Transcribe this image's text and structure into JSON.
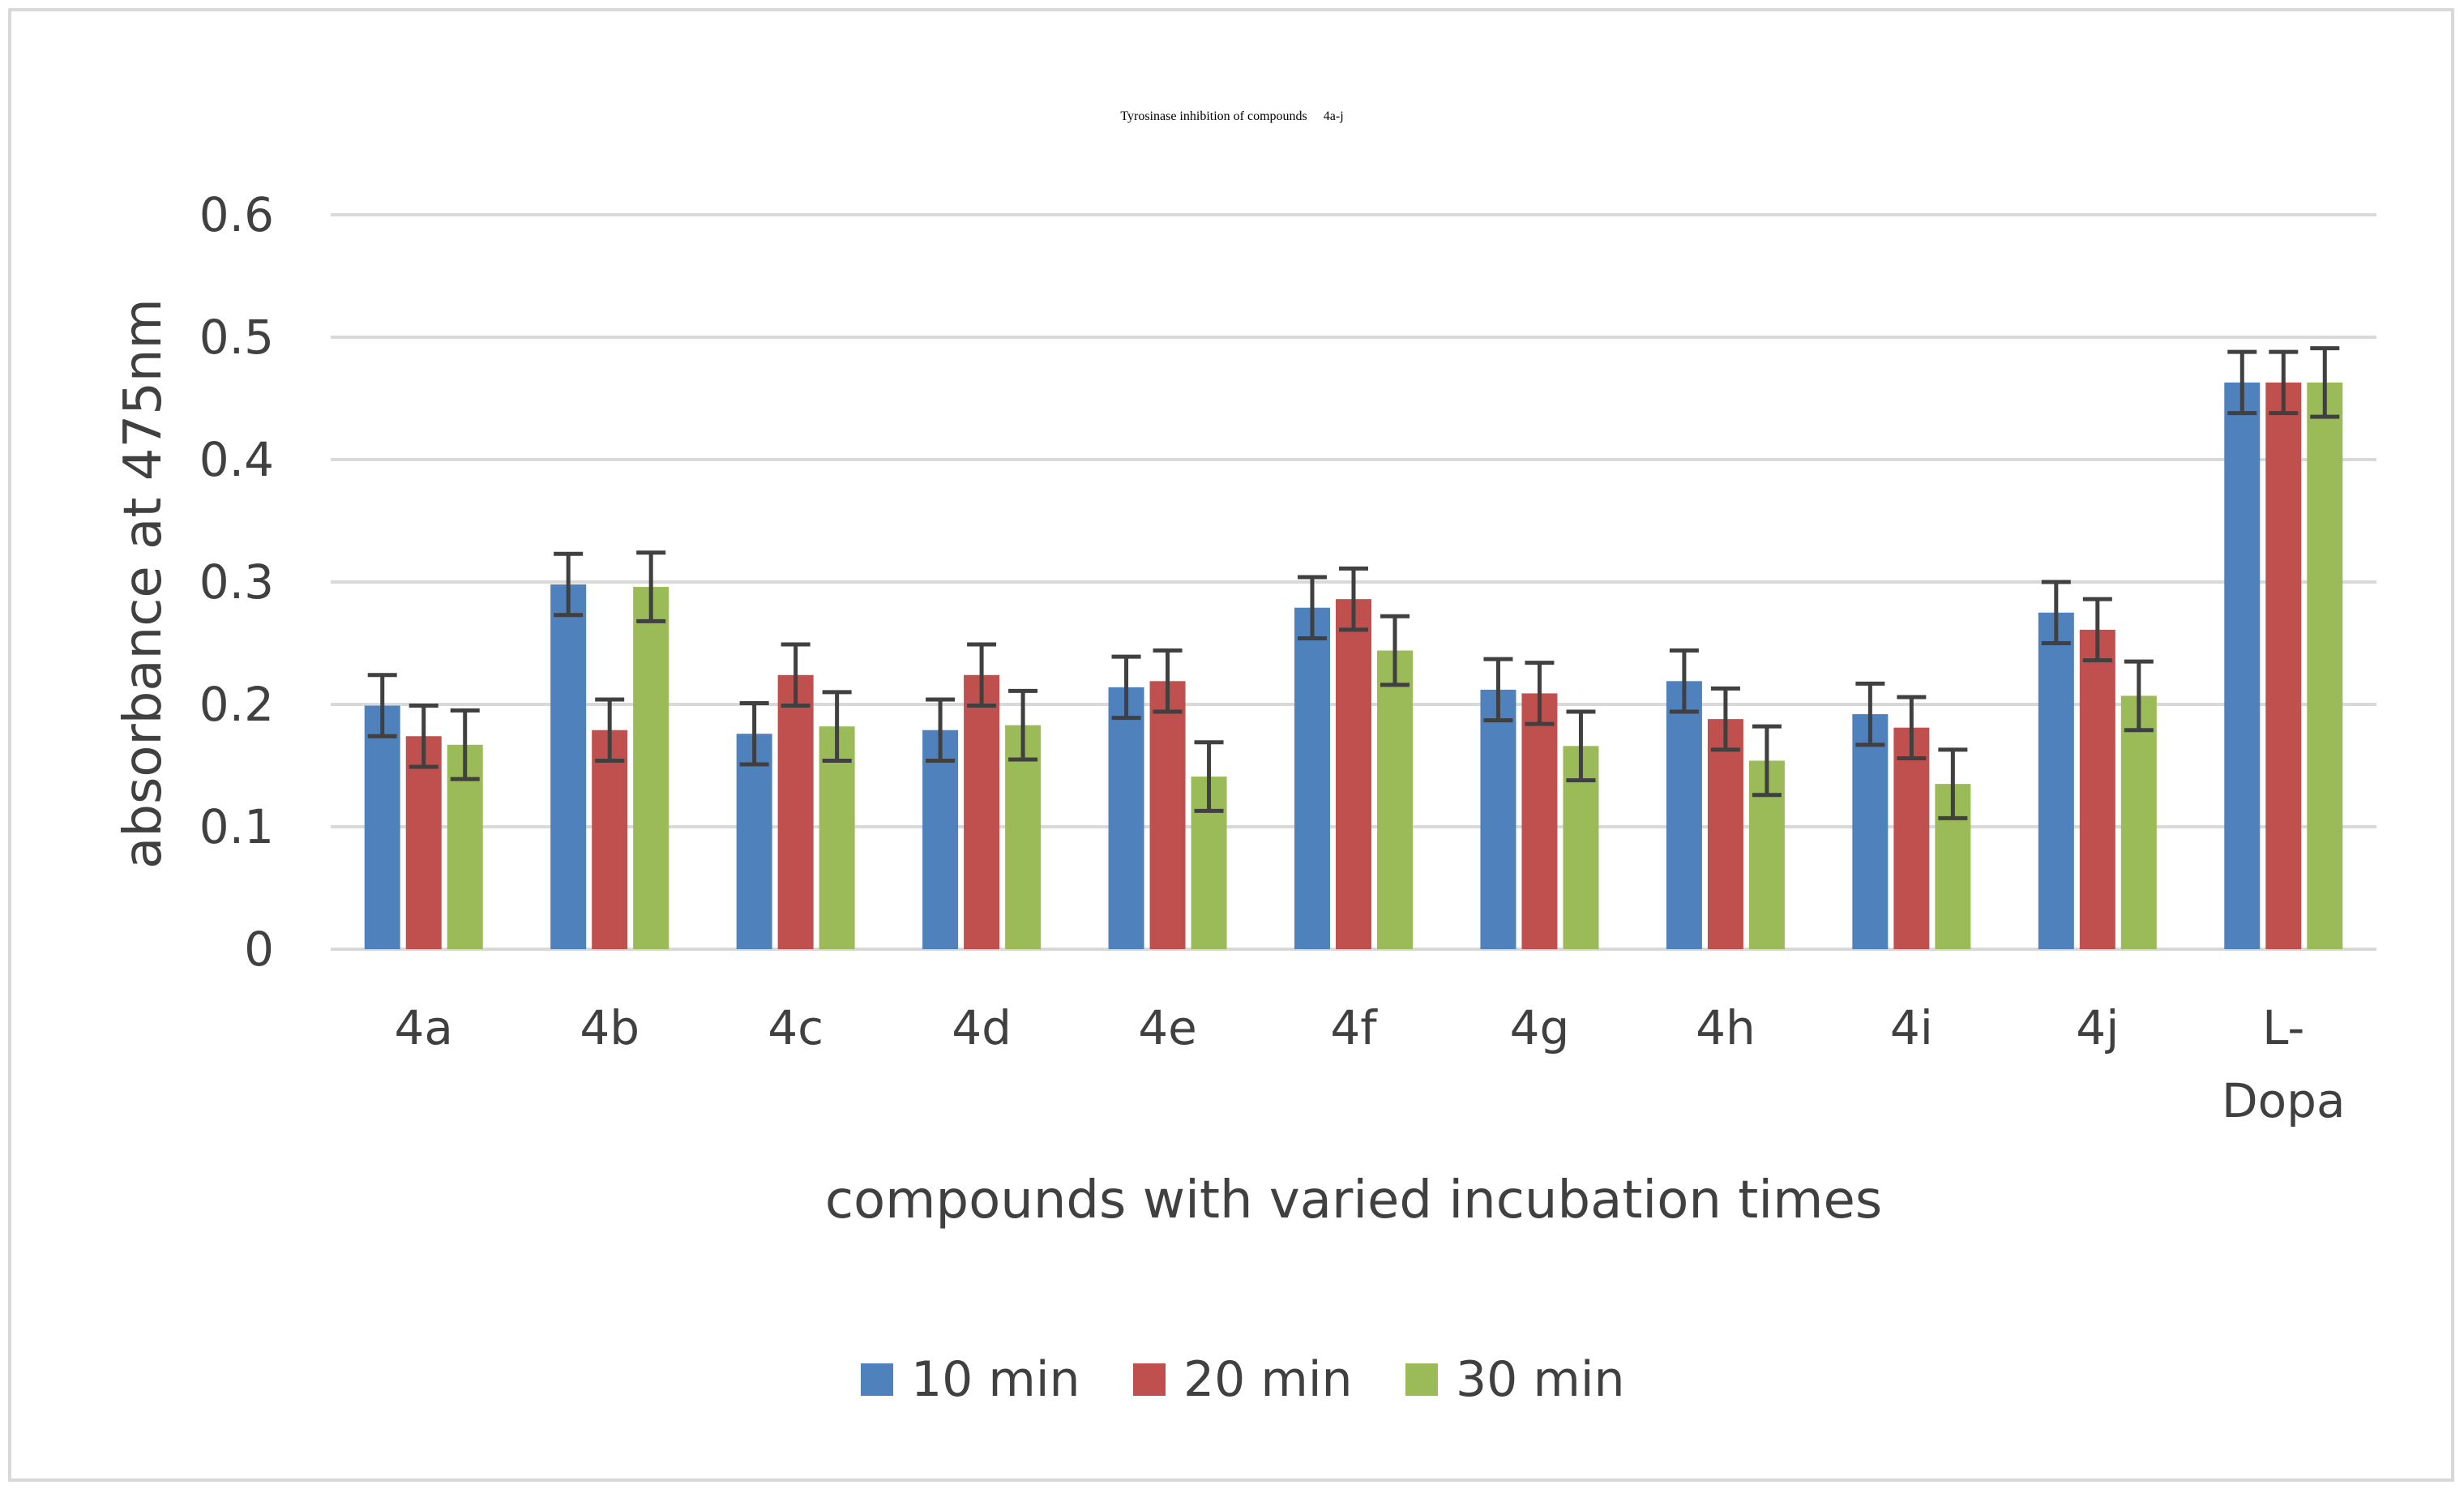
{
  "chart_data": {
    "type": "bar",
    "title": "Tyrosinase inhibition of compounds",
    "title_bold": "4a-j",
    "xlabel": "compounds with varied incubation times",
    "ylabel": "absorbance at 475nm",
    "ylim": [
      0,
      0.6
    ],
    "y_ticks": [
      "0",
      "0.1",
      "0.2",
      "0.3",
      "0.4",
      "0.5",
      "0.6"
    ],
    "y_tick_values": [
      0,
      0.1,
      0.2,
      0.3,
      0.4,
      0.5,
      0.6
    ],
    "grid": true,
    "legend_position": "bottom",
    "categories": [
      "4a",
      "4b",
      "4c",
      "4d",
      "4e",
      "4f",
      "4g",
      "4h",
      "4i",
      "4j",
      "L-Dopa"
    ],
    "category_label_lines": [
      [
        "4a"
      ],
      [
        "4b"
      ],
      [
        "4c"
      ],
      [
        "4d"
      ],
      [
        "4e"
      ],
      [
        "4f"
      ],
      [
        "4g"
      ],
      [
        "4h"
      ],
      [
        "4i"
      ],
      [
        "4j"
      ],
      [
        "L-",
        "Dopa"
      ]
    ],
    "series": [
      {
        "name": "10 min",
        "color": "#4F81BD",
        "values": [
          0.199,
          0.298,
          0.176,
          0.179,
          0.214,
          0.279,
          0.212,
          0.219,
          0.192,
          0.275,
          0.463
        ],
        "errors": [
          0.025,
          0.025,
          0.025,
          0.025,
          0.025,
          0.025,
          0.025,
          0.025,
          0.025,
          0.025,
          0.025
        ]
      },
      {
        "name": "20 min",
        "color": "#C0504D",
        "values": [
          0.174,
          0.179,
          0.224,
          0.224,
          0.219,
          0.286,
          0.209,
          0.188,
          0.181,
          0.261,
          0.463
        ],
        "errors": [
          0.025,
          0.025,
          0.025,
          0.025,
          0.025,
          0.025,
          0.025,
          0.025,
          0.025,
          0.025,
          0.025
        ]
      },
      {
        "name": "30 min",
        "color": "#9BBB59",
        "values": [
          0.167,
          0.296,
          0.182,
          0.183,
          0.141,
          0.244,
          0.166,
          0.154,
          0.135,
          0.207,
          0.463
        ],
        "errors": [
          0.028,
          0.028,
          0.028,
          0.028,
          0.028,
          0.028,
          0.028,
          0.028,
          0.028,
          0.028,
          0.028
        ]
      }
    ]
  }
}
